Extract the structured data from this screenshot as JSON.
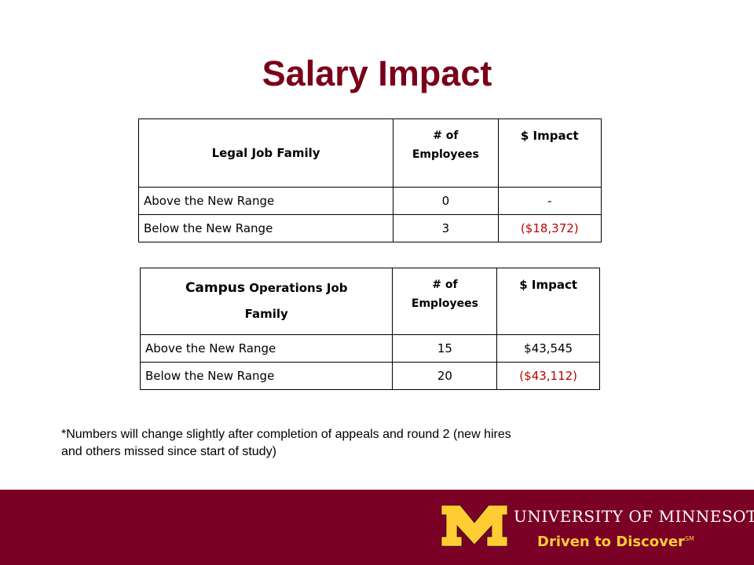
{
  "title": "Salary Impact",
  "tables": [
    {
      "header": {
        "label": "Legal Job Family",
        "count_line1": "# of",
        "count_line2": "Employees",
        "impact": "$ Impact"
      },
      "rows": [
        {
          "label": "Above the New Range",
          "count": "0",
          "impact": "-"
        },
        {
          "label": "Below the New Range",
          "count": "3",
          "impact": "($18,372)"
        }
      ]
    },
    {
      "header": {
        "label_part1": "Campus",
        "label_part2": "Operations Job",
        "label_line2": "Family",
        "count_line1": "# of",
        "count_line2": "Employees",
        "impact": "$ Impact"
      },
      "rows": [
        {
          "label": "Above the New Range",
          "count": "15",
          "impact": "$43,545"
        },
        {
          "label": "Below the New Range",
          "count": "20",
          "impact": "($43,112)"
        }
      ]
    }
  ],
  "footnote_line1": "*Numbers will change slightly after completion of appeals and round 2 (new hires",
  "footnote_line2": "and others missed since start of study)",
  "branding": {
    "logo_icon": "block-m-logo-icon",
    "university_name": "UNIVERSITY OF MINNESOTA",
    "tagline": "Driven to Discover",
    "tagline_mark": "SM",
    "colors": {
      "maroon": "#7a0026",
      "gold": "#ffcc33",
      "title": "#7a0019",
      "negative": "#c00000"
    }
  }
}
